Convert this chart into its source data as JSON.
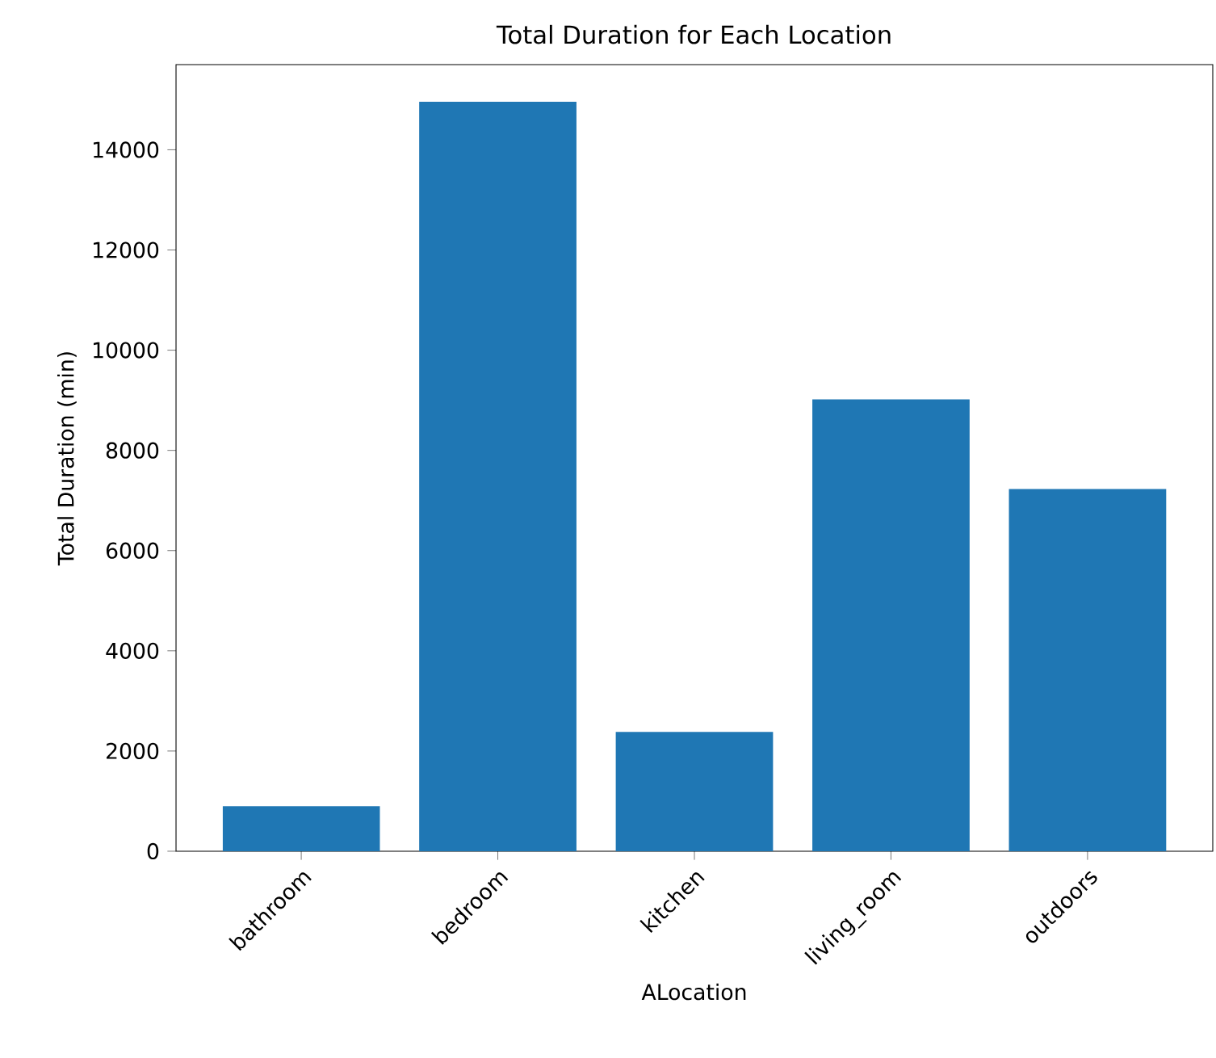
{
  "chart_data": {
    "type": "bar",
    "title": "Total Duration for Each Location",
    "xlabel": "ALocation",
    "ylabel": "Total Duration (min)",
    "categories": [
      "bathroom",
      "bedroom",
      "kitchen",
      "living_room",
      "outdoors"
    ],
    "values": [
      900,
      14960,
      2380,
      9020,
      7230
    ],
    "color": "#1f77b4",
    "ylim": [
      0,
      15700
    ],
    "yticks": [
      0,
      2000,
      4000,
      6000,
      8000,
      10000,
      12000,
      14000
    ]
  }
}
